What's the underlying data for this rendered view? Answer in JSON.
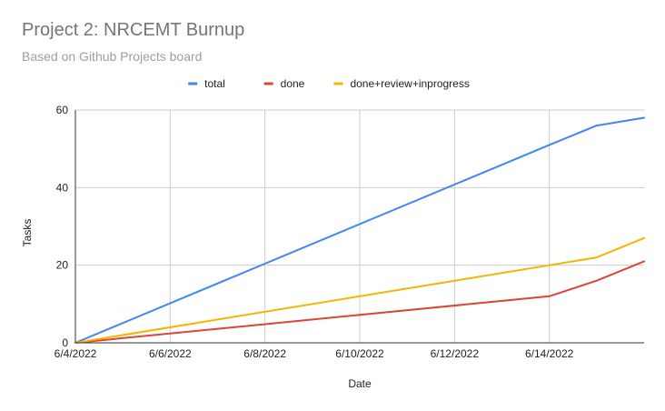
{
  "chart_data": {
    "type": "line",
    "title": "Project 2: NRCEMT Burnup",
    "subtitle": "Based on Github Projects board",
    "xlabel": "Date",
    "ylabel": "Tasks",
    "x_tick_labels": [
      "6/4/2022",
      "6/6/2022",
      "6/8/2022",
      "6/10/2022",
      "6/12/2022",
      "6/14/2022"
    ],
    "y_tick_labels": [
      "0",
      "20",
      "40",
      "60"
    ],
    "ylim": [
      0,
      60
    ],
    "xlim": [
      "6/4/2022",
      "6/16/2022"
    ],
    "grid": true,
    "legend_position": "top",
    "series": [
      {
        "name": "total",
        "color": "#4285F4",
        "points": [
          [
            "6/4/2022",
            0
          ],
          [
            "6/14/2022",
            51
          ],
          [
            "6/15/2022",
            56
          ],
          [
            "6/16/2022",
            58
          ]
        ]
      },
      {
        "name": "done",
        "color": "#DB4437",
        "points": [
          [
            "6/4/2022",
            0
          ],
          [
            "6/14/2022",
            12
          ],
          [
            "6/15/2022",
            16
          ],
          [
            "6/16/2022",
            21
          ]
        ]
      },
      {
        "name": "done+review+inprogress",
        "color": "#F4B400",
        "points": [
          [
            "6/4/2022",
            0
          ],
          [
            "6/14/2022",
            20
          ],
          [
            "6/15/2022",
            22
          ],
          [
            "6/16/2022",
            27
          ]
        ]
      }
    ]
  }
}
